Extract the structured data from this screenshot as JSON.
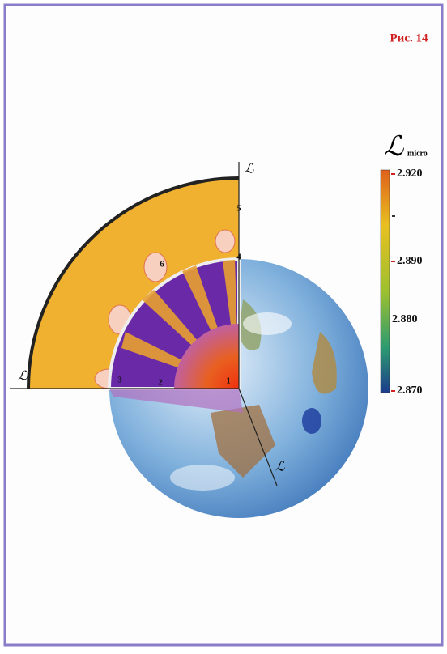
{
  "figure_label": "Рис. 14",
  "colorbar": {
    "symbol": "ℒ",
    "subscript": "micro",
    "ticks": [
      "2.920",
      "2.890",
      "2.880",
      "2.870"
    ]
  },
  "axes": [
    {
      "label": "ℒ"
    },
    {
      "label": "ℒ"
    },
    {
      "label": "ℒ"
    }
  ],
  "region_labels": [
    "1",
    "2",
    "3",
    "4",
    "5",
    "6"
  ]
}
